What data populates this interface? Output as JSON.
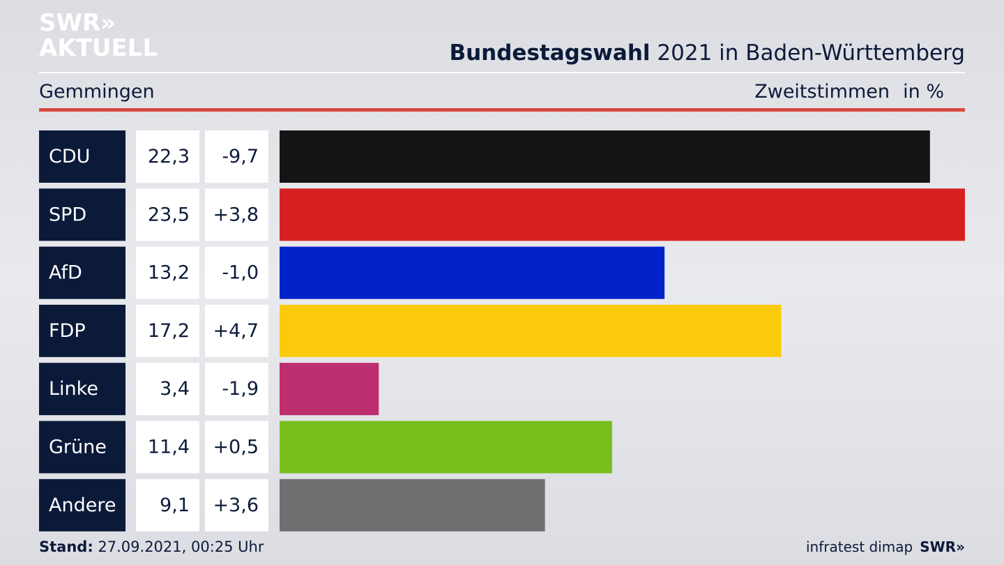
{
  "header": {
    "logo_line1": "SWR»",
    "logo_line2": "AKTUELL",
    "title_bold": "Bundestagswahl",
    "title_rest": " 2021 in Baden-Württemberg",
    "location": "Gemmingen",
    "metric": "Zweitstimmen",
    "unit": "in %"
  },
  "footer": {
    "stand_label": "Stand:",
    "stand_value": " 27.09.2021, 00:25 Uhr",
    "source": "infratest dimap",
    "brand": "SWR»"
  },
  "chart_data": {
    "type": "bar",
    "orientation": "horizontal",
    "categories": [
      "CDU",
      "SPD",
      "AfD",
      "FDP",
      "Linke",
      "Grüne",
      "Andere"
    ],
    "values": [
      22.3,
      23.5,
      13.2,
      17.2,
      3.4,
      11.4,
      9.1
    ],
    "value_labels": [
      "22,3",
      "23,5",
      "13,2",
      "17,2",
      "3,4",
      "11,4",
      "9,1"
    ],
    "change_labels": [
      "-9,7",
      "+3,8",
      "-1,0",
      "+4,7",
      "-1,9",
      "+0,5",
      "+3,6"
    ],
    "colors": [
      "#141414",
      "#d62020",
      "#0223c8",
      "#fbcb0b",
      "#bd2e6e",
      "#78be1d",
      "#707073"
    ],
    "xlim": [
      0,
      23.5
    ],
    "grid": false,
    "legend": "none"
  }
}
